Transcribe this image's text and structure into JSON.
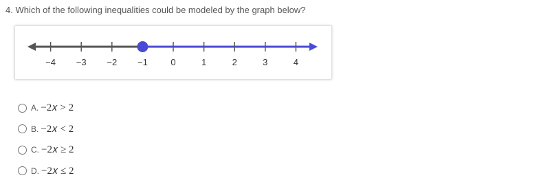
{
  "question": "4. Which of the following inequalities could be modeled by the graph below?",
  "number_line": {
    "ticks": [
      {
        "value": -4,
        "label": "−4"
      },
      {
        "value": -3,
        "label": "−3"
      },
      {
        "value": -2,
        "label": "−2"
      },
      {
        "value": -1,
        "label": "−1"
      },
      0,
      1,
      2,
      3,
      4
    ],
    "point": -1,
    "closed": true,
    "direction": "right",
    "color": "#4a4ad6"
  },
  "options": [
    {
      "letter": "A.",
      "expression": "−2𝑥 > 2"
    },
    {
      "letter": "B.",
      "expression": "−2𝑥 < 2"
    },
    {
      "letter": "C.",
      "expression": "−2𝑥 ≥ 2"
    },
    {
      "letter": "D.",
      "expression": "−2𝑥 ≤ 2"
    }
  ]
}
